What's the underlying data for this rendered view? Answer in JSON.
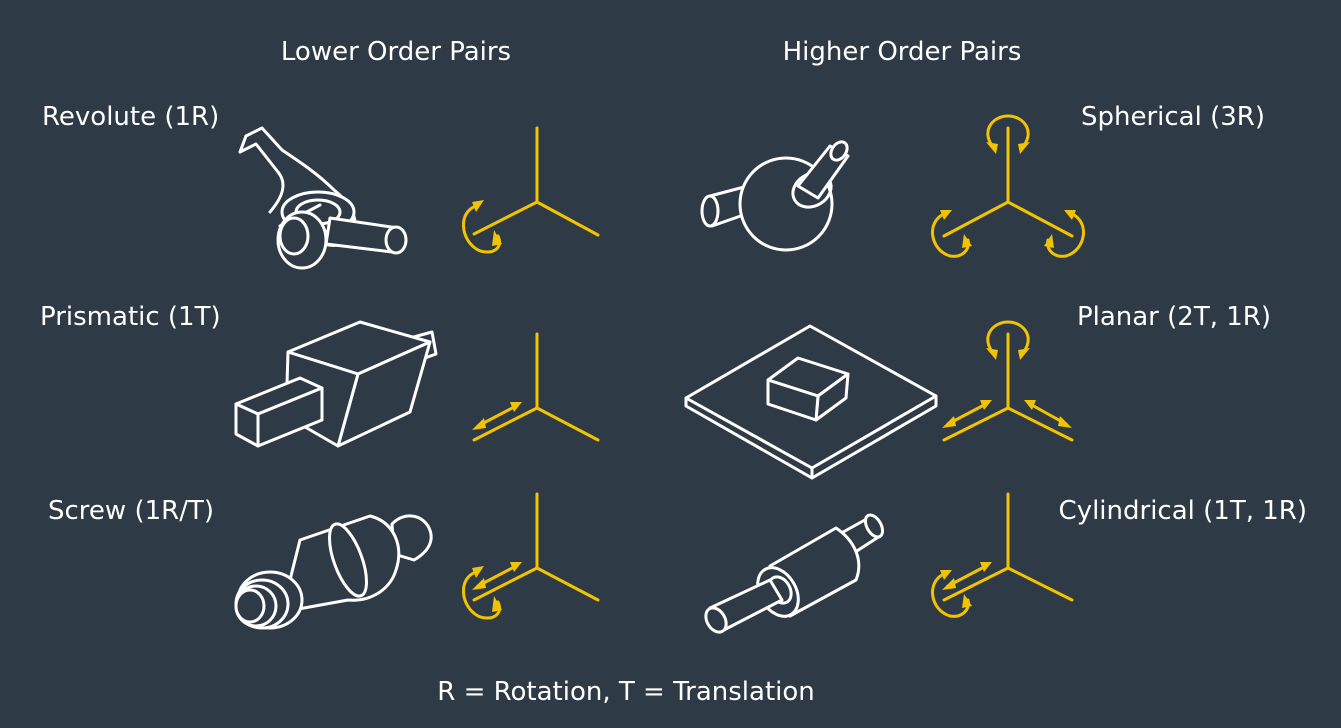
{
  "headers": {
    "lower": "Lower Order Pairs",
    "higher": "Higher Order Pairs"
  },
  "joints": {
    "revolute": "Revolute (1R)",
    "prismatic": "Prismatic (1T)",
    "screw": "Screw (1R/T)",
    "spherical": "Spherical (3R)",
    "planar": "Planar (2T, 1R)",
    "cylindrical": "Cylindrical (1T, 1R)"
  },
  "legend": "R = Rotation, T = Translation",
  "colors": {
    "background": "#2f3a47",
    "line_art": "#ffffff",
    "axis": "#f2c300"
  }
}
